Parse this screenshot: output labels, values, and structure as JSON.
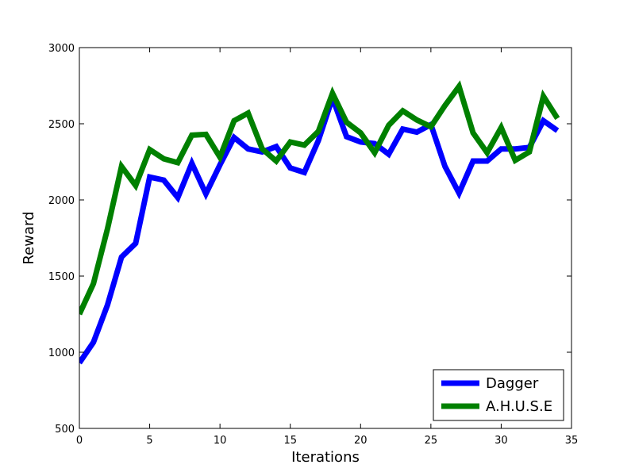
{
  "chart_data": {
    "type": "line",
    "title": "",
    "xlabel": "Iterations",
    "ylabel": "Reward",
    "xlim": [
      0,
      35
    ],
    "ylim": [
      500,
      3000
    ],
    "xticks": [
      0,
      5,
      10,
      15,
      20,
      25,
      30,
      35
    ],
    "yticks": [
      500,
      1000,
      1500,
      2000,
      2500,
      3000
    ],
    "grid": false,
    "legend_position": "lower-right",
    "x": [
      0,
      1,
      2,
      3,
      4,
      5,
      6,
      7,
      8,
      9,
      10,
      11,
      12,
      13,
      14,
      15,
      16,
      17,
      18,
      19,
      20,
      21,
      22,
      23,
      24,
      25,
      26,
      27,
      28,
      29,
      30,
      31,
      32,
      33,
      34
    ],
    "series": [
      {
        "name": "Dagger",
        "color": "#0000ff",
        "values": [
          930,
          1065,
          1310,
          1625,
          1715,
          2150,
          2130,
          2015,
          2240,
          2040,
          2230,
          2410,
          2335,
          2315,
          2350,
          2210,
          2180,
          2390,
          2670,
          2415,
          2380,
          2370,
          2300,
          2465,
          2445,
          2495,
          2220,
          2045,
          2255,
          2255,
          2335,
          2335,
          2345,
          2520,
          2455
        ]
      },
      {
        "name": "A.H.U.S.E",
        "color": "#008000",
        "values": [
          1250,
          1450,
          1810,
          2220,
          2095,
          2330,
          2270,
          2245,
          2425,
          2430,
          2280,
          2520,
          2570,
          2335,
          2255,
          2380,
          2360,
          2450,
          2700,
          2510,
          2440,
          2310,
          2490,
          2585,
          2525,
          2480,
          2620,
          2745,
          2440,
          2310,
          2475,
          2260,
          2315,
          2680,
          2535
        ]
      }
    ]
  }
}
